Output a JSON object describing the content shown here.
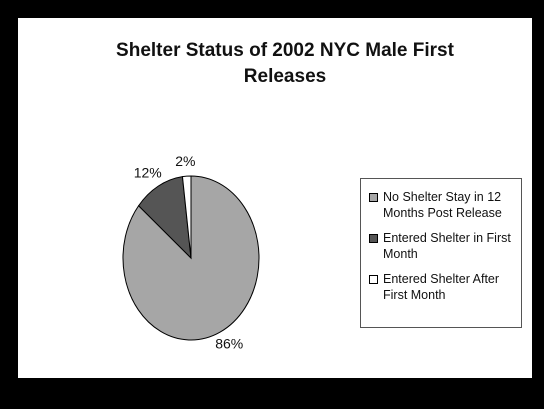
{
  "chart_data": {
    "type": "pie",
    "title": "Shelter Status of 2002 NYC Male First Releases",
    "categories": [
      "No Shelter Stay in 12 Months Post Release",
      "Entered Shelter in First Month",
      "Entered Shelter After First Month"
    ],
    "values": [
      86,
      12,
      2
    ],
    "value_labels": [
      "86%",
      "12%",
      "2%"
    ],
    "colors": [
      "#a6a6a6",
      "#555555",
      "#ffffff"
    ]
  }
}
